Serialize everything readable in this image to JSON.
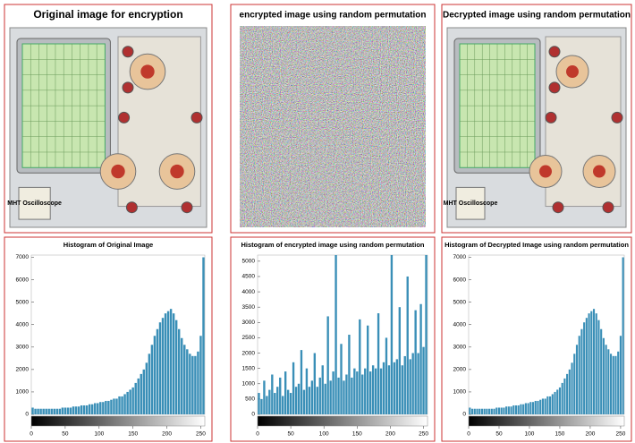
{
  "images": [
    {
      "title": "Original image for encryption",
      "label": "MHT Oscilloscope"
    },
    {
      "title": "encrypted image using random permutation"
    },
    {
      "title": "Decrypted image using random permutation",
      "label": "MHT Oscilloscope"
    }
  ],
  "chart_data": [
    {
      "type": "histogram",
      "title": "Histogram of Original Image",
      "color": "#3a8fb7",
      "bins": [
        0,
        4,
        8,
        12,
        16,
        20,
        24,
        28,
        32,
        36,
        40,
        44,
        48,
        52,
        56,
        60,
        64,
        68,
        72,
        76,
        80,
        84,
        88,
        92,
        96,
        100,
        104,
        108,
        112,
        116,
        120,
        124,
        128,
        132,
        136,
        140,
        144,
        148,
        152,
        156,
        160,
        164,
        168,
        172,
        176,
        180,
        184,
        188,
        192,
        196,
        200,
        204,
        208,
        212,
        216,
        220,
        224,
        228,
        232,
        236,
        240,
        244,
        248,
        252,
        256
      ],
      "values": [
        300,
        250,
        250,
        250,
        250,
        250,
        250,
        250,
        250,
        250,
        250,
        300,
        300,
        300,
        300,
        350,
        350,
        350,
        400,
        400,
        400,
        450,
        450,
        500,
        500,
        550,
        550,
        600,
        600,
        650,
        700,
        700,
        800,
        800,
        900,
        1000,
        1100,
        1200,
        1400,
        1600,
        1800,
        2000,
        2300,
        2700,
        3100,
        3500,
        3800,
        4100,
        4300,
        4500,
        4600,
        4700,
        4500,
        4200,
        3800,
        3400,
        3100,
        2900,
        2700,
        2600,
        2600,
        2800,
        3500,
        7000
      ],
      "xlim": [
        0,
        256
      ],
      "ylim": [
        0,
        7100
      ],
      "xticks": [
        0,
        50,
        100,
        150,
        200,
        250
      ],
      "yticks": [
        0,
        1000,
        2000,
        3000,
        4000,
        5000,
        6000,
        7000
      ]
    },
    {
      "type": "histogram",
      "title": "Histogram of encrypted image using random permutation",
      "color": "#3a8fb7",
      "bins": [
        0,
        4,
        8,
        12,
        16,
        20,
        24,
        28,
        32,
        36,
        40,
        44,
        48,
        52,
        56,
        60,
        64,
        68,
        72,
        76,
        80,
        84,
        88,
        92,
        96,
        100,
        104,
        108,
        112,
        116,
        120,
        124,
        128,
        132,
        136,
        140,
        144,
        148,
        152,
        156,
        160,
        164,
        168,
        172,
        176,
        180,
        184,
        188,
        192,
        196,
        200,
        204,
        208,
        212,
        216,
        220,
        224,
        228,
        232,
        236,
        240,
        244,
        248,
        252,
        256
      ],
      "values": [
        700,
        500,
        1100,
        600,
        800,
        1300,
        700,
        900,
        1200,
        600,
        1400,
        800,
        700,
        1700,
        900,
        1000,
        2100,
        800,
        1500,
        900,
        1100,
        2000,
        900,
        1200,
        1600,
        1000,
        3200,
        1100,
        1400,
        5200,
        1200,
        2300,
        1100,
        1300,
        2600,
        1200,
        1500,
        1400,
        3100,
        1300,
        1500,
        2900,
        1400,
        1600,
        1500,
        3300,
        1500,
        1700,
        2500,
        1600,
        5200,
        1700,
        1800,
        3500,
        1600,
        1900,
        4500,
        1800,
        2000,
        3400,
        2000,
        3600,
        2200,
        5200
      ],
      "xlim": [
        0,
        256
      ],
      "ylim": [
        0,
        5200
      ],
      "xticks": [
        0,
        50,
        100,
        150,
        200,
        250
      ],
      "yticks": [
        0,
        500,
        1000,
        1500,
        2000,
        2500,
        3000,
        3500,
        4000,
        4500,
        5000
      ]
    },
    {
      "type": "histogram",
      "title": "Histogram of Decrypted Image using random permutation",
      "color": "#3a8fb7",
      "bins": [
        0,
        4,
        8,
        12,
        16,
        20,
        24,
        28,
        32,
        36,
        40,
        44,
        48,
        52,
        56,
        60,
        64,
        68,
        72,
        76,
        80,
        84,
        88,
        92,
        96,
        100,
        104,
        108,
        112,
        116,
        120,
        124,
        128,
        132,
        136,
        140,
        144,
        148,
        152,
        156,
        160,
        164,
        168,
        172,
        176,
        180,
        184,
        188,
        192,
        196,
        200,
        204,
        208,
        212,
        216,
        220,
        224,
        228,
        232,
        236,
        240,
        244,
        248,
        252,
        256
      ],
      "values": [
        300,
        250,
        250,
        250,
        250,
        250,
        250,
        250,
        250,
        250,
        250,
        300,
        300,
        300,
        300,
        350,
        350,
        350,
        400,
        400,
        400,
        450,
        450,
        500,
        500,
        550,
        550,
        600,
        600,
        650,
        700,
        700,
        800,
        800,
        900,
        1000,
        1100,
        1200,
        1400,
        1600,
        1800,
        2000,
        2300,
        2700,
        3100,
        3500,
        3800,
        4100,
        4300,
        4500,
        4600,
        4700,
        4500,
        4200,
        3800,
        3400,
        3100,
        2900,
        2700,
        2600,
        2600,
        2800,
        3500,
        7000
      ],
      "xlim": [
        0,
        256
      ],
      "ylim": [
        0,
        7100
      ],
      "xticks": [
        0,
        50,
        100,
        150,
        200,
        250
      ],
      "yticks": [
        0,
        1000,
        2000,
        3000,
        4000,
        5000,
        6000,
        7000
      ]
    }
  ]
}
